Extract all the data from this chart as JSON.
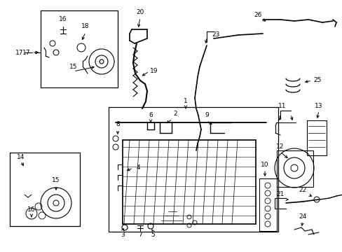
{
  "bg_color": "#ffffff",
  "fig_width": 4.89,
  "fig_height": 3.6,
  "dpi": 100,
  "line_color": "#000000",
  "text_color": "#000000",
  "label_fontsize": 6.5
}
